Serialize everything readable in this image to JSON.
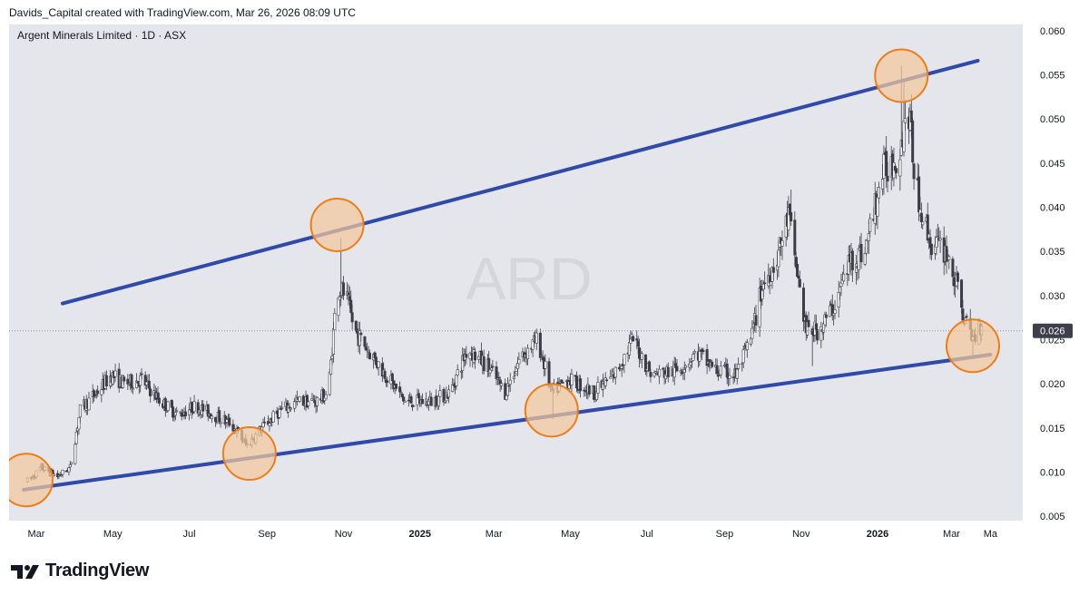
{
  "header": {
    "caption": "Davids_Capital created with TradingView.com, Mar 26, 2026 08:09 UTC"
  },
  "chart_data": {
    "type": "candlestick",
    "symbol_title": "Argent Minerals Limited · 1D · ASX",
    "watermark": "ARD",
    "last_price": "0.026",
    "y_ticks": [
      "0.060",
      "0.055",
      "0.050",
      "0.045",
      "0.040",
      "0.035",
      "0.030",
      "0.025",
      "0.020",
      "0.015",
      "0.010",
      "0.005"
    ],
    "ylim": [
      0.0045,
      0.0607
    ],
    "x_ticks": [
      {
        "label": "Mar",
        "date": "2024-03-01",
        "bold": false
      },
      {
        "label": "May",
        "date": "2024-05-01",
        "bold": false
      },
      {
        "label": "Jul",
        "date": "2024-07-01",
        "bold": false
      },
      {
        "label": "Sep",
        "date": "2024-09-01",
        "bold": false
      },
      {
        "label": "Nov",
        "date": "2024-11-01",
        "bold": false
      },
      {
        "label": "2025",
        "date": "2025-01-01",
        "bold": true
      },
      {
        "label": "Mar",
        "date": "2025-03-01",
        "bold": false
      },
      {
        "label": "May",
        "date": "2025-05-01",
        "bold": false
      },
      {
        "label": "Jul",
        "date": "2025-07-01",
        "bold": false
      },
      {
        "label": "Sep",
        "date": "2025-09-01",
        "bold": false
      },
      {
        "label": "Nov",
        "date": "2025-11-01",
        "bold": false
      },
      {
        "label": "2026",
        "date": "2026-01-01",
        "bold": true
      },
      {
        "label": "Mar",
        "date": "2026-03-01",
        "bold": false
      },
      {
        "label": "Ma",
        "date": "2026-04-01",
        "bold": false
      }
    ],
    "price_path": [
      [
        "2024-02-24",
        0.009
      ],
      [
        "2024-03-05",
        0.0105
      ],
      [
        "2024-03-18",
        0.0095
      ],
      [
        "2024-03-28",
        0.0105
      ],
      [
        "2024-04-05",
        0.017
      ],
      [
        "2024-04-18",
        0.019
      ],
      [
        "2024-04-30",
        0.021
      ],
      [
        "2024-05-10",
        0.02
      ],
      [
        "2024-05-24",
        0.0205
      ],
      [
        "2024-06-08",
        0.018
      ],
      [
        "2024-06-22",
        0.0165
      ],
      [
        "2024-07-06",
        0.0175
      ],
      [
        "2024-07-20",
        0.0165
      ],
      [
        "2024-08-03",
        0.0155
      ],
      [
        "2024-08-16",
        0.013
      ],
      [
        "2024-08-28",
        0.015
      ],
      [
        "2024-09-12",
        0.017
      ],
      [
        "2024-09-26",
        0.018
      ],
      [
        "2024-10-10",
        0.018
      ],
      [
        "2024-10-20",
        0.019
      ],
      [
        "2024-10-27",
        0.031
      ],
      [
        "2024-11-03",
        0.03
      ],
      [
        "2024-11-10",
        0.026
      ],
      [
        "2024-11-20",
        0.024
      ],
      [
        "2024-12-05",
        0.021
      ],
      [
        "2024-12-20",
        0.018
      ],
      [
        "2025-01-10",
        0.018
      ],
      [
        "2025-01-25",
        0.019
      ],
      [
        "2025-02-08",
        0.024
      ],
      [
        "2025-02-24",
        0.022
      ],
      [
        "2025-03-10",
        0.019
      ],
      [
        "2025-03-22",
        0.023
      ],
      [
        "2025-04-05",
        0.025
      ],
      [
        "2025-04-16",
        0.019
      ],
      [
        "2025-04-30",
        0.0205
      ],
      [
        "2025-05-20",
        0.019
      ],
      [
        "2025-06-05",
        0.021
      ],
      [
        "2025-06-20",
        0.025
      ],
      [
        "2025-07-05",
        0.021
      ],
      [
        "2025-07-25",
        0.0215
      ],
      [
        "2025-08-10",
        0.0235
      ],
      [
        "2025-08-25",
        0.0215
      ],
      [
        "2025-09-10",
        0.021
      ],
      [
        "2025-09-22",
        0.025
      ],
      [
        "2025-10-01",
        0.031
      ],
      [
        "2025-10-12",
        0.034
      ],
      [
        "2025-10-22",
        0.039
      ],
      [
        "2025-11-05",
        0.026
      ],
      [
        "2025-11-15",
        0.026
      ],
      [
        "2025-11-28",
        0.029
      ],
      [
        "2025-12-10",
        0.034
      ],
      [
        "2025-12-22",
        0.035
      ],
      [
        "2026-01-05",
        0.044
      ],
      [
        "2026-01-18",
        0.046
      ],
      [
        "2026-01-25",
        0.052
      ],
      [
        "2026-02-01",
        0.042
      ],
      [
        "2026-02-12",
        0.036
      ],
      [
        "2026-02-25",
        0.035
      ],
      [
        "2026-03-05",
        0.031
      ],
      [
        "2026-03-12",
        0.027
      ],
      [
        "2026-03-18",
        0.025
      ],
      [
        "2026-03-25",
        0.027
      ]
    ],
    "lines": [
      {
        "name": "upper",
        "from": [
          "2024-03-22",
          0.0291
        ],
        "to": [
          "2026-03-22",
          0.0566
        ],
        "color": "#2f4aa8"
      },
      {
        "name": "lower",
        "from": [
          "2024-02-20",
          0.008
        ],
        "to": [
          "2026-04-01",
          0.0233
        ],
        "color": "#2f4aa8"
      }
    ],
    "circles": [
      {
        "date": "2024-02-22",
        "price": 0.0091
      },
      {
        "date": "2024-08-18",
        "price": 0.0121
      },
      {
        "date": "2024-10-27",
        "price": 0.038
      },
      {
        "date": "2025-04-16",
        "price": 0.017
      },
      {
        "date": "2026-01-20",
        "price": 0.0549
      },
      {
        "date": "2026-03-18",
        "price": 0.0243
      }
    ],
    "colors": {
      "background": "#e5e6ec",
      "trendline": "#2f4aa8",
      "circle_fill": "#f3c89d",
      "circle_stroke": "#ee7d16",
      "candle": "#3b3d46",
      "price_label_bg": "#3d404b"
    }
  },
  "footer": {
    "brand": "TradingView"
  }
}
